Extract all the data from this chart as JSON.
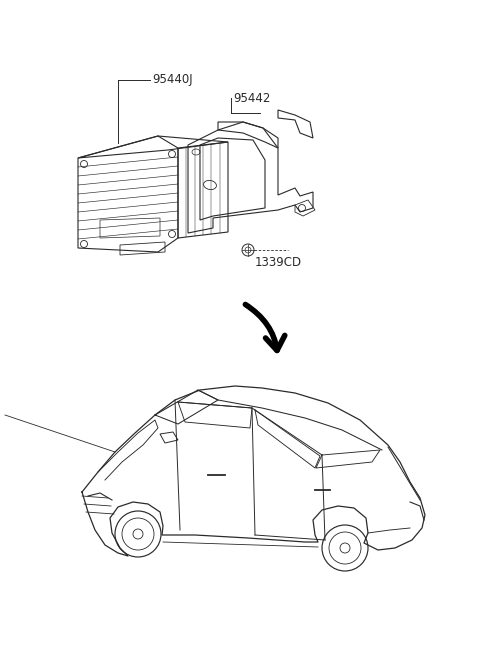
{
  "bg_color": "#ffffff",
  "line_color": "#2a2a2a",
  "label_95440J": "95440J",
  "label_95442": "95442",
  "label_1339CD": "1339CD",
  "fig_width": 4.8,
  "fig_height": 6.57,
  "dpi": 100
}
